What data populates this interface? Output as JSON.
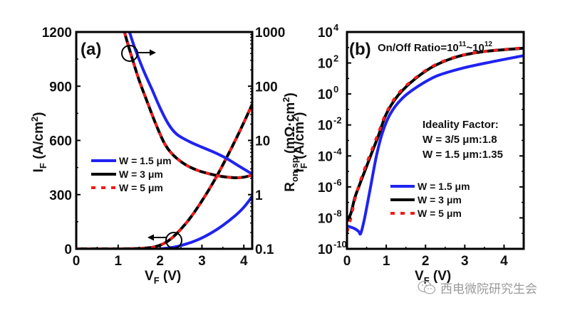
{
  "colors": {
    "blue": "#1f23f2",
    "black": "#000000",
    "red": "#f21b1b",
    "axis": "#000000"
  },
  "chart_data": [
    {
      "panel": "(a)",
      "type": "line",
      "title": "",
      "xlabel": "V_F (V)",
      "ylabel": "I_F (A/cm^2)",
      "y2label": "R_on,sp (mΩ·cm^2)",
      "xlim": [
        0,
        4.2
      ],
      "ylim": [
        0,
        1200
      ],
      "y2lim": [
        0.1,
        1000
      ],
      "y2scale": "log",
      "xticks": [
        "0",
        "1",
        "2",
        "3",
        "4"
      ],
      "yticks": [
        "0",
        "300",
        "600",
        "900",
        "1200"
      ],
      "y2ticks": [
        "0.1",
        "1",
        "10",
        "100",
        "1000"
      ],
      "legend": {
        "placement": "center-left",
        "entries": [
          "W = 1.5 μm",
          "W = 3 μm",
          "W = 5 μm"
        ]
      },
      "annotations": [
        {
          "type": "circle-arrow",
          "direction": "right",
          "meaning": "R_on,sp curves use right axis"
        },
        {
          "type": "circle-arrow",
          "direction": "left",
          "meaning": "I_F curves use left axis"
        }
      ],
      "series": [
        {
          "name": "W = 1.5 μm",
          "quantity": "I_F",
          "axis": "left",
          "style": "solid-blue",
          "x": [
            2.0,
            2.3,
            2.6,
            2.9,
            3.2,
            3.5,
            3.8,
            4.0,
            4.2
          ],
          "y": [
            0,
            8,
            25,
            50,
            85,
            130,
            185,
            230,
            290
          ]
        },
        {
          "name": "W = 3 μm",
          "quantity": "I_F",
          "axis": "left",
          "style": "solid-black",
          "x": [
            0,
            1.0,
            1.5,
            1.8,
            2.0,
            2.2,
            2.4,
            2.7,
            3.0,
            3.3,
            3.6,
            3.9,
            4.2
          ],
          "y": [
            0,
            0,
            2,
            8,
            20,
            45,
            85,
            165,
            265,
            380,
            510,
            650,
            800
          ]
        },
        {
          "name": "W = 5 μm",
          "quantity": "I_F",
          "axis": "left",
          "style": "dotted-red",
          "x": [
            0,
            1.0,
            1.5,
            1.8,
            2.0,
            2.2,
            2.4,
            2.7,
            3.0,
            3.3,
            3.6,
            3.9,
            4.2
          ],
          "y": [
            0,
            0,
            2,
            8,
            20,
            45,
            85,
            165,
            265,
            380,
            510,
            650,
            800
          ]
        },
        {
          "name": "W = 1.5 μm",
          "quantity": "R_on,sp",
          "axis": "right",
          "style": "solid-blue",
          "x": [
            1.27,
            1.4,
            1.6,
            1.8,
            2.0,
            2.2,
            2.4,
            2.7,
            3.0,
            3.3,
            3.6,
            3.9,
            4.2
          ],
          "y": [
            1000,
            500,
            200,
            90,
            40,
            20,
            13,
            9.5,
            7.5,
            6.0,
            4.6,
            3.3,
            2.4
          ]
        },
        {
          "name": "W = 3 μm",
          "quantity": "R_on,sp",
          "axis": "right",
          "style": "solid-black",
          "x": [
            1.15,
            1.3,
            1.5,
            1.7,
            1.9,
            2.1,
            2.3,
            2.6,
            2.9,
            3.2,
            3.5,
            3.8,
            4.0,
            4.2
          ],
          "y": [
            1000,
            400,
            130,
            50,
            20,
            9,
            5.5,
            3.6,
            2.8,
            2.4,
            2.15,
            2.05,
            2.1,
            2.3
          ]
        },
        {
          "name": "W = 5 μm",
          "quantity": "R_on,sp",
          "axis": "right",
          "style": "dotted-red",
          "x": [
            1.15,
            1.3,
            1.5,
            1.7,
            1.9,
            2.1,
            2.3,
            2.6,
            2.9,
            3.2,
            3.5,
            3.8,
            4.0,
            4.2
          ],
          "y": [
            1000,
            400,
            130,
            50,
            20,
            9,
            5.5,
            3.6,
            2.8,
            2.4,
            2.15,
            2.05,
            2.1,
            2.3
          ]
        }
      ]
    },
    {
      "panel": "(b)",
      "type": "line",
      "title": "On/Off Ratio=10^11~10^12",
      "xlabel": "V_F (V)",
      "ylabel": "I_F (A/cm^2)",
      "xlim": [
        0,
        4.5
      ],
      "ylim": [
        1e-10,
        10000.0
      ],
      "yscale": "log",
      "xticks": [
        "0",
        "1",
        "2",
        "3",
        "4"
      ],
      "yticks": [
        "10^-10",
        "10^-8",
        "10^-6",
        "10^-4",
        "10^-2",
        "10^0",
        "10^2",
        "10^4"
      ],
      "legend": {
        "placement": "center-left",
        "entries": [
          "W = 1.5 μm",
          "W = 3 μm",
          "W = 5 μm"
        ]
      },
      "annotations": [
        "Ideality Factor:",
        "W = 3/5 μm:1.8",
        "W = 1.5 μm:1.35"
      ],
      "series": [
        {
          "name": "W = 1.5 μm",
          "style": "solid-blue",
          "x": [
            0.0,
            0.1,
            0.2,
            0.3,
            0.35,
            0.45,
            0.6,
            0.75,
            0.9,
            1.1,
            1.4,
            1.8,
            2.3,
            3.0,
            3.7,
            4.5
          ],
          "y": [
            3e-09,
            2.5e-09,
            2e-09,
            1.3e-09,
            1e-09,
            1e-08,
            1e-06,
            0.0001,
            0.003,
            0.05,
            0.5,
            3,
            15,
            50,
            120,
            300
          ]
        },
        {
          "name": "W = 3 μm",
          "style": "solid-black",
          "x": [
            0.0,
            0.1,
            0.2,
            0.3,
            0.45,
            0.6,
            0.8,
            1.0,
            1.3,
            1.7,
            2.2,
            2.8,
            3.5,
            4.5
          ],
          "y": [
            6e-09,
            2e-08,
            2e-07,
            1e-06,
            1e-05,
            0.0001,
            0.002,
            0.05,
            0.8,
            8,
            60,
            250,
            550,
            900
          ]
        },
        {
          "name": "W = 5 μm",
          "style": "dotted-red",
          "x": [
            0.0,
            0.1,
            0.2,
            0.3,
            0.45,
            0.6,
            0.8,
            1.0,
            1.3,
            1.7,
            2.2,
            2.8,
            3.5,
            4.5
          ],
          "y": [
            1.2e-09,
            1e-08,
            1.5e-07,
            1.2e-06,
            1.5e-05,
            0.00015,
            0.003,
            0.06,
            1.0,
            9,
            65,
            260,
            560,
            950
          ]
        }
      ]
    }
  ],
  "watermark": {
    "text": "西电微院研究生会"
  }
}
